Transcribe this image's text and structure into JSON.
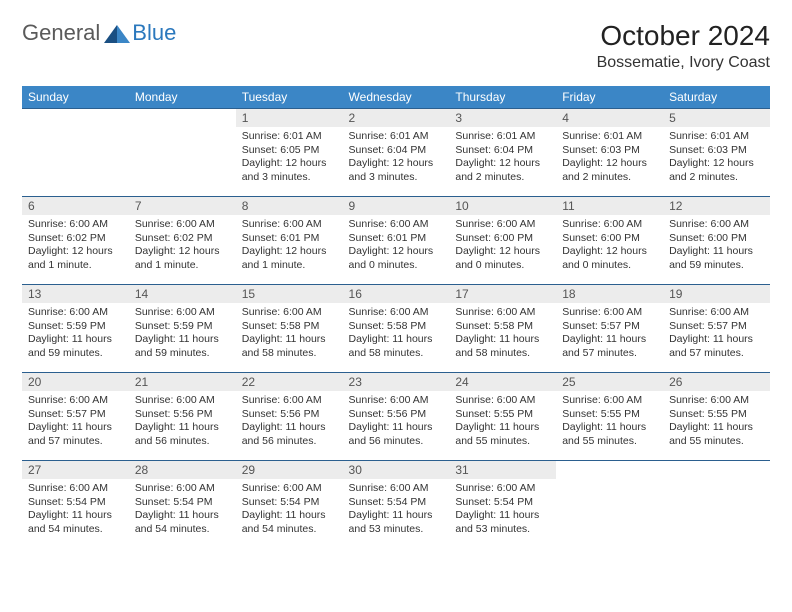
{
  "logo": {
    "general": "General",
    "blue": "Blue"
  },
  "title": "October 2024",
  "location": "Bossematie, Ivory Coast",
  "colors": {
    "header_bg": "#3b86c6",
    "header_text": "#ffffff",
    "row_border": "#2b5f8f",
    "daynum_bg": "#ececec",
    "daynum_text": "#555555",
    "body_text": "#333333",
    "logo_gray": "#5a5a5a",
    "logo_blue": "#2b78bd",
    "background": "#ffffff"
  },
  "typography": {
    "title_fontsize": 28,
    "location_fontsize": 16,
    "dayheader_fontsize": 12,
    "daynum_fontsize": 12,
    "cell_fontsize": 10.5
  },
  "day_headers": [
    "Sunday",
    "Monday",
    "Tuesday",
    "Wednesday",
    "Thursday",
    "Friday",
    "Saturday"
  ],
  "weeks": [
    [
      null,
      null,
      {
        "n": "1",
        "sr": "Sunrise: 6:01 AM",
        "ss": "Sunset: 6:05 PM",
        "dl": "Daylight: 12 hours and 3 minutes."
      },
      {
        "n": "2",
        "sr": "Sunrise: 6:01 AM",
        "ss": "Sunset: 6:04 PM",
        "dl": "Daylight: 12 hours and 3 minutes."
      },
      {
        "n": "3",
        "sr": "Sunrise: 6:01 AM",
        "ss": "Sunset: 6:04 PM",
        "dl": "Daylight: 12 hours and 2 minutes."
      },
      {
        "n": "4",
        "sr": "Sunrise: 6:01 AM",
        "ss": "Sunset: 6:03 PM",
        "dl": "Daylight: 12 hours and 2 minutes."
      },
      {
        "n": "5",
        "sr": "Sunrise: 6:01 AM",
        "ss": "Sunset: 6:03 PM",
        "dl": "Daylight: 12 hours and 2 minutes."
      }
    ],
    [
      {
        "n": "6",
        "sr": "Sunrise: 6:00 AM",
        "ss": "Sunset: 6:02 PM",
        "dl": "Daylight: 12 hours and 1 minute."
      },
      {
        "n": "7",
        "sr": "Sunrise: 6:00 AM",
        "ss": "Sunset: 6:02 PM",
        "dl": "Daylight: 12 hours and 1 minute."
      },
      {
        "n": "8",
        "sr": "Sunrise: 6:00 AM",
        "ss": "Sunset: 6:01 PM",
        "dl": "Daylight: 12 hours and 1 minute."
      },
      {
        "n": "9",
        "sr": "Sunrise: 6:00 AM",
        "ss": "Sunset: 6:01 PM",
        "dl": "Daylight: 12 hours and 0 minutes."
      },
      {
        "n": "10",
        "sr": "Sunrise: 6:00 AM",
        "ss": "Sunset: 6:00 PM",
        "dl": "Daylight: 12 hours and 0 minutes."
      },
      {
        "n": "11",
        "sr": "Sunrise: 6:00 AM",
        "ss": "Sunset: 6:00 PM",
        "dl": "Daylight: 12 hours and 0 minutes."
      },
      {
        "n": "12",
        "sr": "Sunrise: 6:00 AM",
        "ss": "Sunset: 6:00 PM",
        "dl": "Daylight: 11 hours and 59 minutes."
      }
    ],
    [
      {
        "n": "13",
        "sr": "Sunrise: 6:00 AM",
        "ss": "Sunset: 5:59 PM",
        "dl": "Daylight: 11 hours and 59 minutes."
      },
      {
        "n": "14",
        "sr": "Sunrise: 6:00 AM",
        "ss": "Sunset: 5:59 PM",
        "dl": "Daylight: 11 hours and 59 minutes."
      },
      {
        "n": "15",
        "sr": "Sunrise: 6:00 AM",
        "ss": "Sunset: 5:58 PM",
        "dl": "Daylight: 11 hours and 58 minutes."
      },
      {
        "n": "16",
        "sr": "Sunrise: 6:00 AM",
        "ss": "Sunset: 5:58 PM",
        "dl": "Daylight: 11 hours and 58 minutes."
      },
      {
        "n": "17",
        "sr": "Sunrise: 6:00 AM",
        "ss": "Sunset: 5:58 PM",
        "dl": "Daylight: 11 hours and 58 minutes."
      },
      {
        "n": "18",
        "sr": "Sunrise: 6:00 AM",
        "ss": "Sunset: 5:57 PM",
        "dl": "Daylight: 11 hours and 57 minutes."
      },
      {
        "n": "19",
        "sr": "Sunrise: 6:00 AM",
        "ss": "Sunset: 5:57 PM",
        "dl": "Daylight: 11 hours and 57 minutes."
      }
    ],
    [
      {
        "n": "20",
        "sr": "Sunrise: 6:00 AM",
        "ss": "Sunset: 5:57 PM",
        "dl": "Daylight: 11 hours and 57 minutes."
      },
      {
        "n": "21",
        "sr": "Sunrise: 6:00 AM",
        "ss": "Sunset: 5:56 PM",
        "dl": "Daylight: 11 hours and 56 minutes."
      },
      {
        "n": "22",
        "sr": "Sunrise: 6:00 AM",
        "ss": "Sunset: 5:56 PM",
        "dl": "Daylight: 11 hours and 56 minutes."
      },
      {
        "n": "23",
        "sr": "Sunrise: 6:00 AM",
        "ss": "Sunset: 5:56 PM",
        "dl": "Daylight: 11 hours and 56 minutes."
      },
      {
        "n": "24",
        "sr": "Sunrise: 6:00 AM",
        "ss": "Sunset: 5:55 PM",
        "dl": "Daylight: 11 hours and 55 minutes."
      },
      {
        "n": "25",
        "sr": "Sunrise: 6:00 AM",
        "ss": "Sunset: 5:55 PM",
        "dl": "Daylight: 11 hours and 55 minutes."
      },
      {
        "n": "26",
        "sr": "Sunrise: 6:00 AM",
        "ss": "Sunset: 5:55 PM",
        "dl": "Daylight: 11 hours and 55 minutes."
      }
    ],
    [
      {
        "n": "27",
        "sr": "Sunrise: 6:00 AM",
        "ss": "Sunset: 5:54 PM",
        "dl": "Daylight: 11 hours and 54 minutes."
      },
      {
        "n": "28",
        "sr": "Sunrise: 6:00 AM",
        "ss": "Sunset: 5:54 PM",
        "dl": "Daylight: 11 hours and 54 minutes."
      },
      {
        "n": "29",
        "sr": "Sunrise: 6:00 AM",
        "ss": "Sunset: 5:54 PM",
        "dl": "Daylight: 11 hours and 54 minutes."
      },
      {
        "n": "30",
        "sr": "Sunrise: 6:00 AM",
        "ss": "Sunset: 5:54 PM",
        "dl": "Daylight: 11 hours and 53 minutes."
      },
      {
        "n": "31",
        "sr": "Sunrise: 6:00 AM",
        "ss": "Sunset: 5:54 PM",
        "dl": "Daylight: 11 hours and 53 minutes."
      },
      null,
      null
    ]
  ]
}
